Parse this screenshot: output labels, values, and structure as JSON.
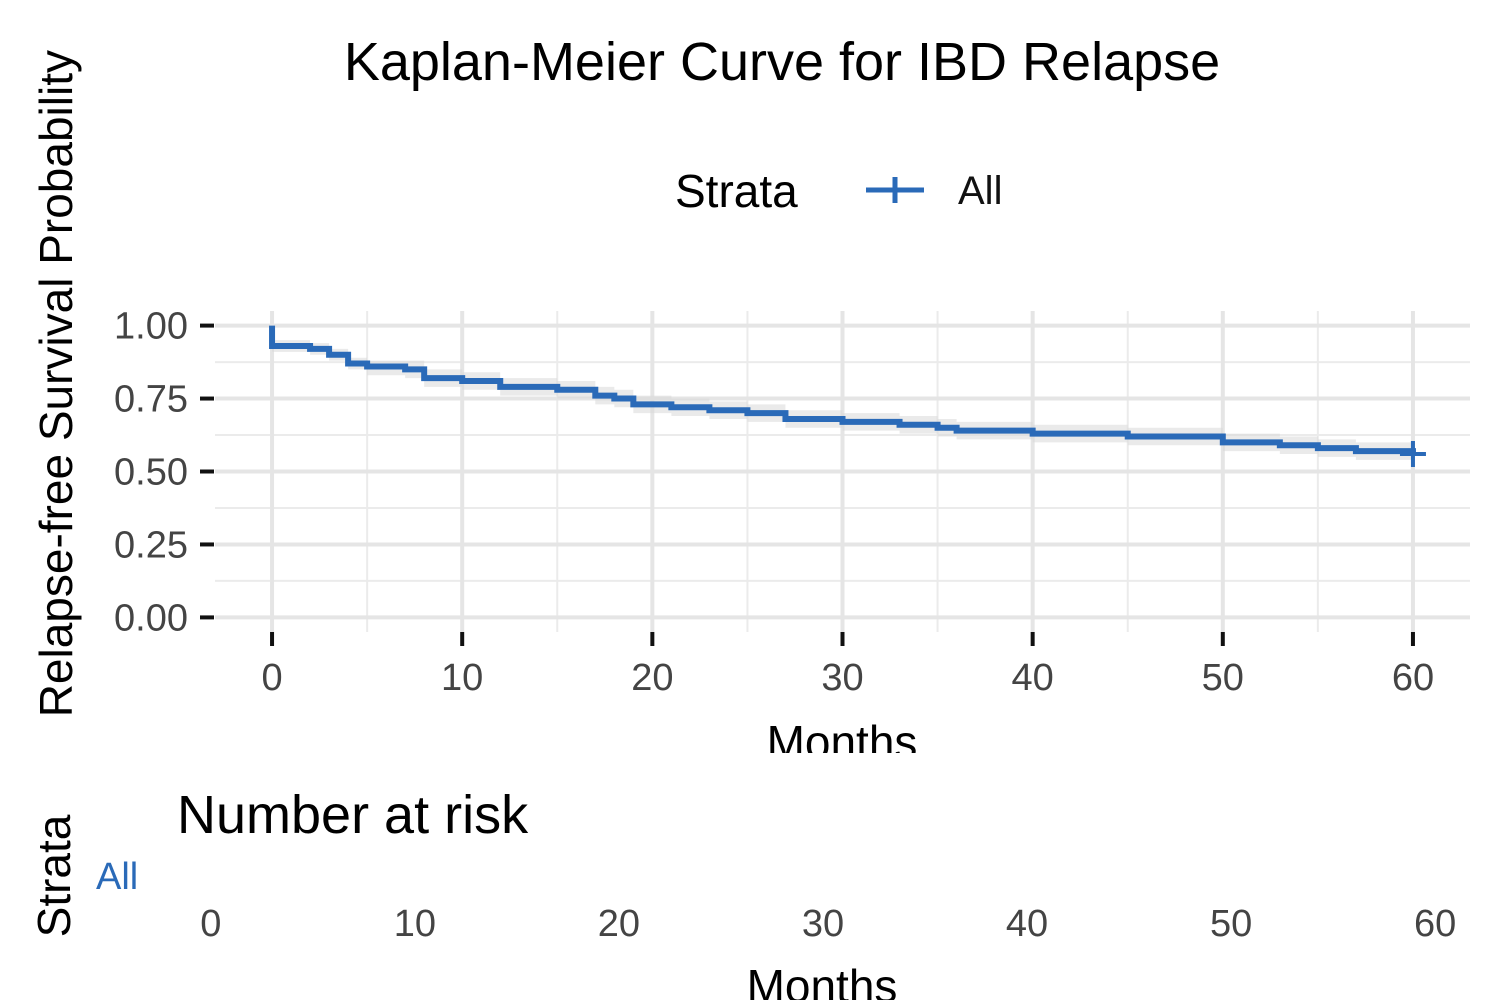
{
  "chart_data": [
    {
      "type": "step",
      "title": "Kaplan-Meier Curve for IBD Relapse",
      "x_label": "Months",
      "y_label": "Relapse-free Survival Probability",
      "legend_title": "Strata",
      "legend_position": "top",
      "grid": true,
      "x": [
        0,
        0,
        2,
        3,
        4,
        5,
        7,
        8,
        10,
        12,
        15,
        17,
        18,
        19,
        21,
        23,
        25,
        27,
        30,
        33,
        35,
        36,
        40,
        45,
        50,
        53,
        55,
        57,
        60
      ],
      "series": [
        {
          "name": "All",
          "color": "#2a6ab8",
          "values": [
            1,
            0.93,
            0.92,
            0.9,
            0.87,
            0.86,
            0.85,
            0.82,
            0.81,
            0.79,
            0.78,
            0.76,
            0.75,
            0.73,
            0.72,
            0.71,
            0.7,
            0.68,
            0.67,
            0.66,
            0.65,
            0.64,
            0.63,
            0.62,
            0.6,
            0.59,
            0.58,
            0.57,
            0.56
          ],
          "lower": [
            1,
            0.91,
            0.9,
            0.88,
            0.85,
            0.83,
            0.82,
            0.79,
            0.78,
            0.76,
            0.75,
            0.73,
            0.72,
            0.7,
            0.69,
            0.68,
            0.67,
            0.65,
            0.64,
            0.63,
            0.62,
            0.61,
            0.6,
            0.59,
            0.57,
            0.56,
            0.55,
            0.54,
            0.52
          ],
          "upper": [
            1,
            0.95,
            0.94,
            0.92,
            0.89,
            0.88,
            0.88,
            0.85,
            0.84,
            0.82,
            0.81,
            0.79,
            0.78,
            0.76,
            0.75,
            0.74,
            0.73,
            0.71,
            0.7,
            0.69,
            0.68,
            0.67,
            0.66,
            0.65,
            0.63,
            0.62,
            0.61,
            0.6,
            0.6
          ]
        }
      ],
      "xlim": [
        -3,
        63
      ],
      "ylim": [
        -0.05,
        1.05
      ],
      "xticks": [
        0,
        10,
        20,
        30,
        40,
        50,
        60
      ],
      "yticks": [
        {
          "value": 0,
          "label": "0.00"
        },
        {
          "value": 0.25,
          "label": "0.25"
        },
        {
          "value": 0.5,
          "label": "0.50"
        },
        {
          "value": 0.75,
          "label": "0.75"
        },
        {
          "value": 1,
          "label": "1.00"
        }
      ]
    },
    {
      "type": "risk-table",
      "title": "Number at risk",
      "x_label": "Months",
      "y_label": "Strata",
      "categories": [
        "All"
      ],
      "color": "#2a6ab8",
      "xlim": [
        -2,
        62
      ],
      "xticks": [
        0,
        10,
        20,
        30,
        40,
        50,
        60
      ]
    }
  ]
}
